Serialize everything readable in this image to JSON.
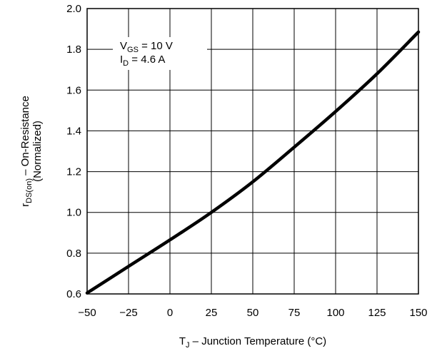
{
  "chart_data": {
    "type": "line",
    "title": "",
    "x_ticks": [
      "−50",
      "−25",
      "0",
      "25",
      "50",
      "75",
      "100",
      "125",
      "150"
    ],
    "y_ticks": [
      "0.6",
      "0.8",
      "1.0",
      "1.2",
      "1.4",
      "1.6",
      "1.8",
      "2.0"
    ],
    "xlim": [
      -50,
      150
    ],
    "ylim": [
      0.6,
      2.0
    ],
    "grid": true,
    "xlabel": {
      "main": "T",
      "sub": "J",
      "rest": " – Junction Temperature (°C)"
    },
    "ylabel": {
      "main": "r",
      "sub": "DS(on)",
      "rest": " – On-Resistance",
      "line2": "(Normalized)"
    },
    "annotation": {
      "line1_main": "V",
      "line1_sub": "GS",
      "line1_rest": " = 10 V",
      "line2_main": "I",
      "line2_sub": "D",
      "line2_rest": " = 4.6 A"
    },
    "series": [
      {
        "x": [
          -50,
          -25,
          0,
          25,
          50,
          75,
          100,
          125,
          150
        ],
        "y": [
          0.605,
          0.735,
          0.865,
          1.0,
          1.15,
          1.32,
          1.495,
          1.68,
          1.885
        ]
      }
    ]
  }
}
